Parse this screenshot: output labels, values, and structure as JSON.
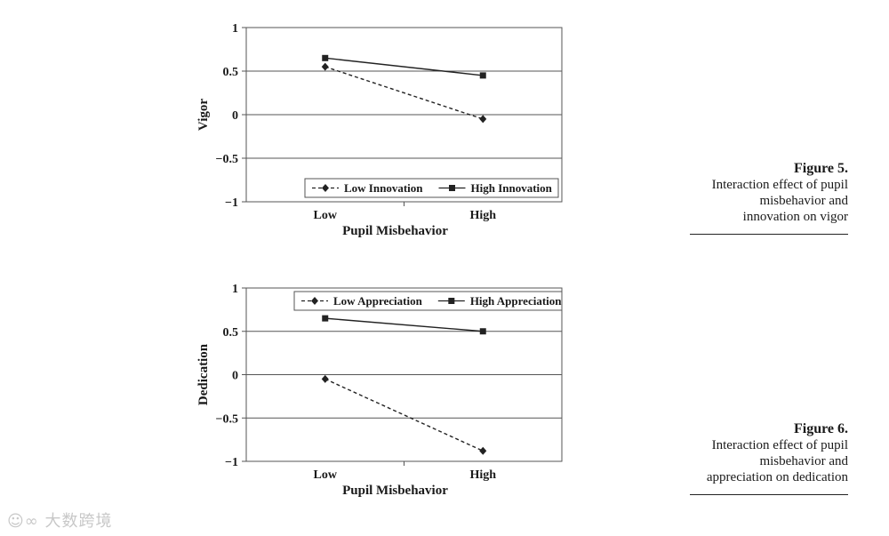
{
  "chart_data": [
    {
      "type": "line",
      "categories": [
        "Low",
        "High"
      ],
      "xlabel": "Pupil Misbehavior",
      "ylabel": "Vigor",
      "ylim": [
        -1,
        1
      ],
      "yticks": [
        "1",
        "0.5",
        "0",
        "−0.5",
        "−1"
      ],
      "grid": true,
      "legend_position": "bottom-right",
      "series": [
        {
          "name": "Low Innovation",
          "values": [
            0.55,
            -0.05
          ],
          "style": "dashed",
          "marker": "diamond"
        },
        {
          "name": "High Innovation",
          "values": [
            0.65,
            0.45
          ],
          "style": "solid",
          "marker": "square"
        }
      ]
    },
    {
      "type": "line",
      "categories": [
        "Low",
        "High"
      ],
      "xlabel": "Pupil Misbehavior",
      "ylabel": "Dedication",
      "ylim": [
        -1,
        1
      ],
      "yticks": [
        "1",
        "0.5",
        "0",
        "−0.5",
        "−1"
      ],
      "grid": true,
      "legend_position": "top-right",
      "series": [
        {
          "name": "Low Appreciation",
          "values": [
            -0.05,
            -0.88
          ],
          "style": "dashed",
          "marker": "diamond"
        },
        {
          "name": "High Appreciation",
          "values": [
            0.65,
            0.5
          ],
          "style": "solid",
          "marker": "square"
        }
      ]
    }
  ],
  "captions": [
    {
      "label": "Figure 5.",
      "lines": [
        "Interaction effect of pupil",
        "misbehavior and",
        "innovation on vigor"
      ]
    },
    {
      "label": "Figure 6.",
      "lines": [
        "Interaction effect of pupil",
        "misbehavior and",
        "appreciation on dedication"
      ]
    }
  ],
  "watermark": "大数跨境",
  "colors": {
    "line": "#222222",
    "grid": "#555555",
    "text": "#1a1a1a"
  }
}
